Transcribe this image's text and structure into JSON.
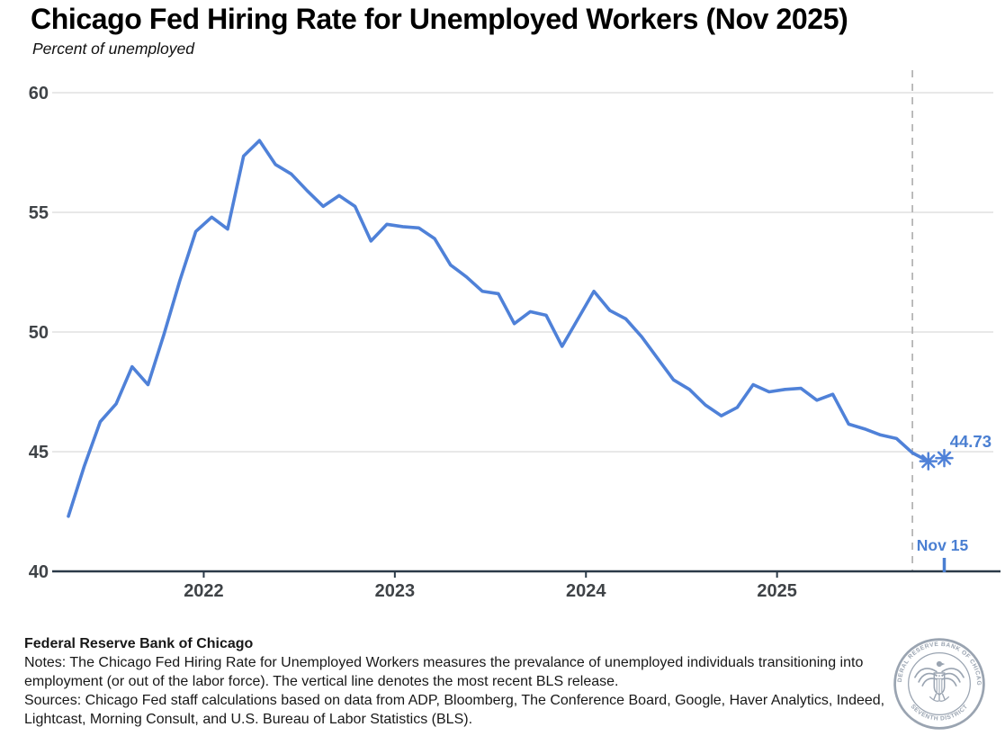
{
  "chart_data": {
    "type": "line",
    "title": "Chicago Fed Hiring Rate for Unemployed Workers (Nov 2025)",
    "subtitle": "Percent of unemployed",
    "xlabel": "",
    "ylabel": "Percent of unemployed",
    "ylim": [
      40,
      60
    ],
    "y_ticks": [
      40,
      45,
      50,
      55,
      60
    ],
    "x_tick_labels": [
      "2022",
      "2023",
      "2024",
      "2025"
    ],
    "grid": "horizontal",
    "legend": "none",
    "series": [
      {
        "name": "Chicago Fed Hiring Rate for Unemployed Workers",
        "months": [
          "Apr 2021",
          "May 2021",
          "Jun 2021",
          "Jul 2021",
          "Aug 2021",
          "Sep 2021",
          "Oct 2021",
          "Nov 2021",
          "Dec 2021",
          "Jan 2022",
          "Feb 2022",
          "Mar 2022",
          "Apr 2022",
          "May 2022",
          "Jun 2022",
          "Jul 2022",
          "Aug 2022",
          "Sep 2022",
          "Oct 2022",
          "Nov 2022",
          "Dec 2022",
          "Jan 2023",
          "Feb 2023",
          "Mar 2023",
          "Apr 2023",
          "May 2023",
          "Jun 2023",
          "Jul 2023",
          "Aug 2023",
          "Sep 2023",
          "Oct 2023",
          "Nov 2023",
          "Dec 2023",
          "Jan 2024",
          "Feb 2024",
          "Mar 2024",
          "Apr 2024",
          "May 2024",
          "Jun 2024",
          "Jul 2024",
          "Aug 2024",
          "Sep 2024",
          "Oct 2024",
          "Nov 2024",
          "Dec 2024",
          "Jan 2025",
          "Feb 2025",
          "Mar 2025",
          "Apr 2025",
          "May 2025",
          "Jun 2025",
          "Jul 2025",
          "Aug 2025",
          "Sep 2025"
        ],
        "values": [
          42.3,
          44.4,
          46.25,
          47.0,
          48.55,
          47.8,
          49.9,
          52.15,
          54.2,
          54.8,
          54.3,
          57.35,
          58.0,
          57.0,
          56.6,
          55.9,
          55.25,
          55.7,
          55.25,
          53.8,
          54.5,
          54.4,
          54.35,
          53.9,
          52.8,
          52.3,
          51.7,
          51.6,
          50.35,
          50.85,
          50.7,
          49.4,
          50.55,
          51.7,
          50.9,
          50.55,
          49.8,
          48.9,
          48.0,
          47.6,
          46.95,
          46.5,
          46.85,
          47.8,
          47.5,
          47.6,
          47.65,
          47.15,
          47.4,
          46.15,
          45.95,
          45.7,
          45.55,
          44.95
        ]
      }
    ],
    "forecast_points": [
      {
        "month": "Oct 2025",
        "value": 44.6,
        "marker": "asterisk"
      },
      {
        "month": "Nov 15, 2025",
        "value": 44.73,
        "marker": "asterisk"
      }
    ],
    "annotations": {
      "end_value_label": "44.73",
      "release_tick_label": "Nov 15",
      "vline_meaning": "most recent BLS release"
    },
    "line_color": "#4f81d8",
    "label_color": "#4a7fd2",
    "grid_color": "#d9d9d9",
    "axis_color": "#2b3a48",
    "vline_color": "#b5b5b5",
    "tick_text_color": "#3f4347"
  },
  "footer": {
    "org": "Federal Reserve Bank of Chicago",
    "notes": "Notes: The Chicago Fed Hiring Rate for Unemployed Workers measures the prevalance of unemployed individuals transitioning into employment (or out of the labor force). The vertical line denotes the most recent BLS release.",
    "sources": "Sources: Chicago Fed staff calculations based on data from ADP, Bloomberg, The Conference Board, Google, Haver Analytics, Indeed, Lightcast, Morning Consult, and U.S. Bureau of Labor Statistics (BLS)."
  },
  "logo": {
    "ring_text_top": "FEDERAL RESERVE BANK OF CHICAGO",
    "ring_text_bottom": "SEVENTH DISTRICT",
    "color": "#9aa4b1"
  }
}
